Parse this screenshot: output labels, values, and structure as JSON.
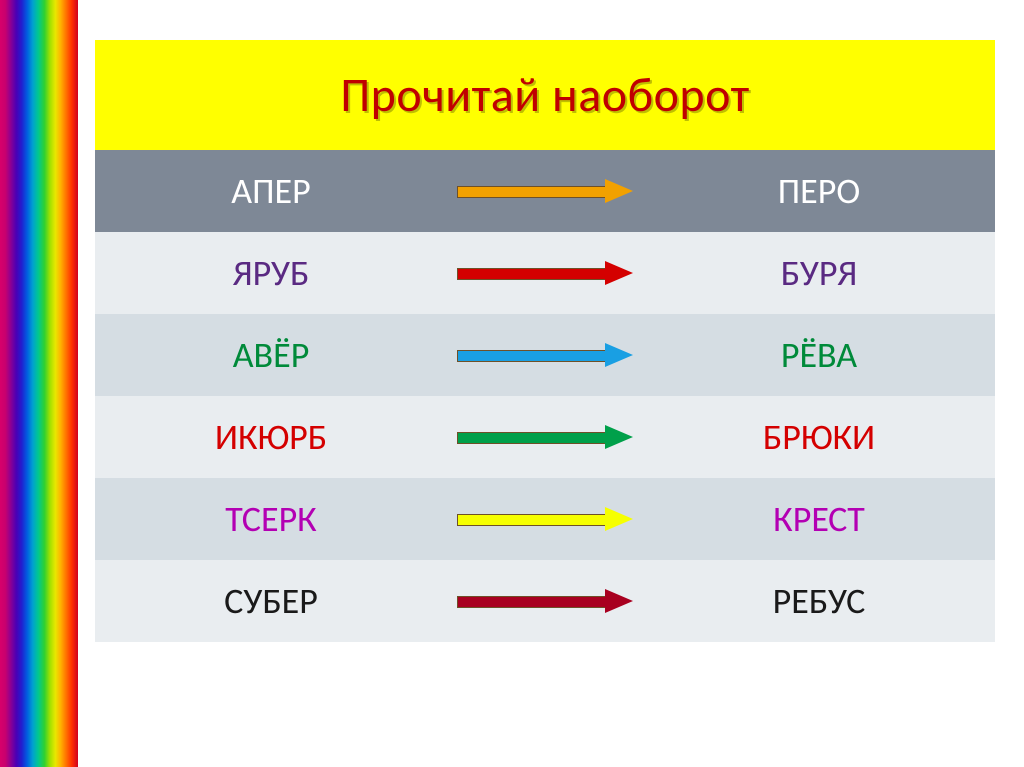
{
  "title": {
    "text": "Прочитай наоборот",
    "background": "#ffff00",
    "color": "#c00000",
    "shadow_color": "#bfbf00"
  },
  "header_row": {
    "left": "АПЕР",
    "right": "ПЕРО",
    "background": "#7e8896",
    "text_color": "#ffffff"
  },
  "row_colors": {
    "light": "#e9edf0",
    "dark": "#d5dde3"
  },
  "rows": [
    {
      "left": "ЯРУБ",
      "right": "БУРЯ",
      "text_color": "#5a2a82",
      "arrow_color": "#f2a100"
    },
    {
      "left": "АВЁР",
      "right": "РЁВА",
      "text_color": "#008a3a",
      "arrow_color": "#d40000"
    },
    {
      "left": "ИКЮРБ",
      "right": "БРЮКИ",
      "text_color": "#d40000",
      "arrow_color": "#199fe3"
    },
    {
      "left": "ТСЕРК",
      "right": "КРЕСТ",
      "text_color": "#b300b3",
      "arrow_color": "#00a04a"
    },
    {
      "left": "СУБЕР",
      "right": "РЕБУС",
      "text_color": "#1a1a1a",
      "arrow_color": "#f6ff00"
    }
  ],
  "last_arrow_color": "#a80020",
  "arrow_stroke": "#6e5028"
}
